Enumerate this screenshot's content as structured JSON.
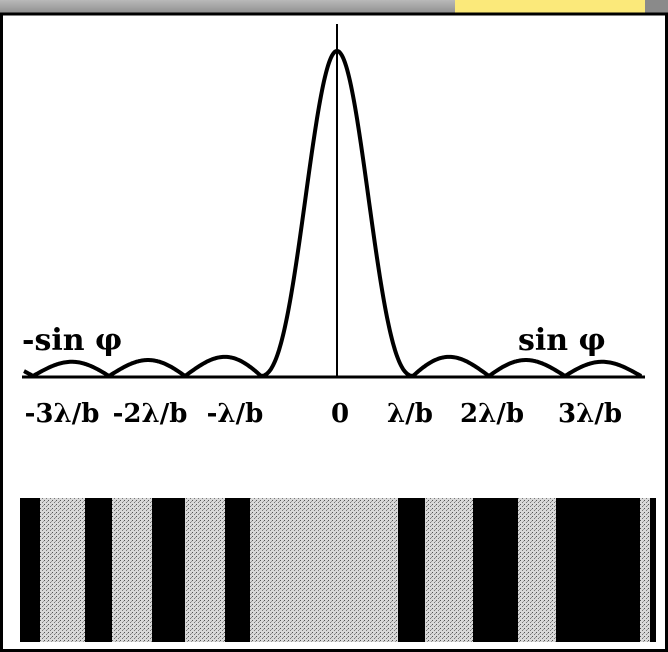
{
  "axis": {
    "left_label": "-sin φ",
    "right_label": "sin φ",
    "ticks": [
      "-3λ/b",
      "-2λ/b",
      "-λ/b",
      "0",
      "λ/b",
      "2λ/b",
      "3λ/b"
    ]
  }
}
